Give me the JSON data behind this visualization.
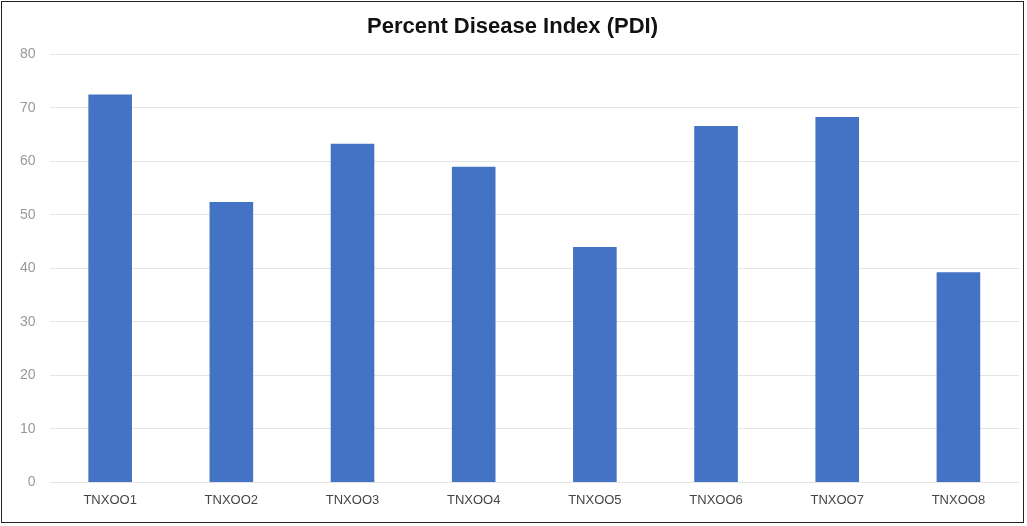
{
  "chart_data": {
    "type": "bar",
    "title": "Percent Disease Index (PDI)",
    "categories": [
      "TNXOO1",
      "TNXOO2",
      "TNXOO3",
      "TNXOO4",
      "TNXOO5",
      "TNXOO6",
      "TNXOO7",
      "TNXOO8"
    ],
    "values": [
      72.5,
      52.4,
      63.3,
      59.0,
      44.0,
      66.6,
      68.3,
      39.3
    ],
    "color": "#4472c4",
    "ylim": [
      0,
      80
    ],
    "yticks": [
      0,
      10,
      20,
      30,
      40,
      50,
      60,
      70,
      80
    ],
    "grid": "y"
  }
}
